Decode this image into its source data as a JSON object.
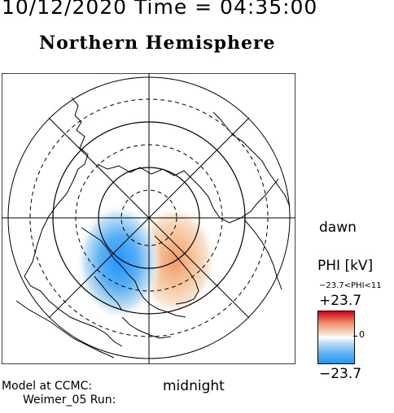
{
  "header": {
    "date_time": "10/12/2020 Time = 04:35:00",
    "hemisphere": "Northern Hemisphere"
  },
  "map": {
    "labels": {
      "dawn": "dawn",
      "midnight": "midnight"
    }
  },
  "legend": {
    "title": "PHI [kV]",
    "range_text": "−23.7<PHI<11",
    "max_label": "+23.7",
    "zero_label": "0",
    "min_label": "−23.7",
    "colors": {
      "positive": "#d10019",
      "neutral": "#ffffff",
      "negative": "#159bff"
    }
  },
  "footer": {
    "model": "Model at CCMC:",
    "run": "Weimer_05 Run:"
  }
}
